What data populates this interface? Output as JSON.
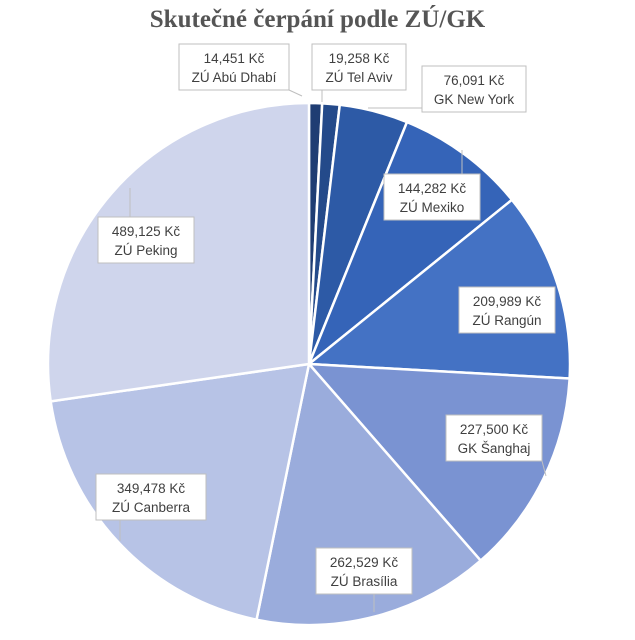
{
  "chart_data": {
    "type": "pie",
    "title": "Skutečné čerpání podle ZÚ/GK",
    "slices": [
      {
        "name": "ZÚ Abú Dhabí",
        "value": 14451,
        "value_label": "14,451 Kč",
        "color": "#1f3d73"
      },
      {
        "name": "ZÚ Tel Aviv",
        "value": 19258,
        "value_label": "19,258 Kč",
        "color": "#244a8a"
      },
      {
        "name": "GK New York",
        "value": 76091,
        "value_label": "76,091 Kč",
        "color": "#2d5aa6"
      },
      {
        "name": "ZÚ Mexiko",
        "value": 144282,
        "value_label": "144,282 Kč",
        "color": "#3564b8"
      },
      {
        "name": "ZÚ Rangún",
        "value": 209989,
        "value_label": "209,989 Kč",
        "color": "#4472c4"
      },
      {
        "name": "GK Šanghaj",
        "value": 227500,
        "value_label": "227,500 Kč",
        "color": "#7a93d2"
      },
      {
        "name": "ZÚ Brasília",
        "value": 262529,
        "value_label": "262,529 Kč",
        "color": "#9aacdc"
      },
      {
        "name": "ZÚ Canberra",
        "value": 349478,
        "value_label": "349,478 Kč",
        "color": "#b7c3e6"
      },
      {
        "name": "ZÚ Peking",
        "value": 489125,
        "value_label": "489,125 Kč",
        "color": "#cfd5ec"
      }
    ]
  }
}
